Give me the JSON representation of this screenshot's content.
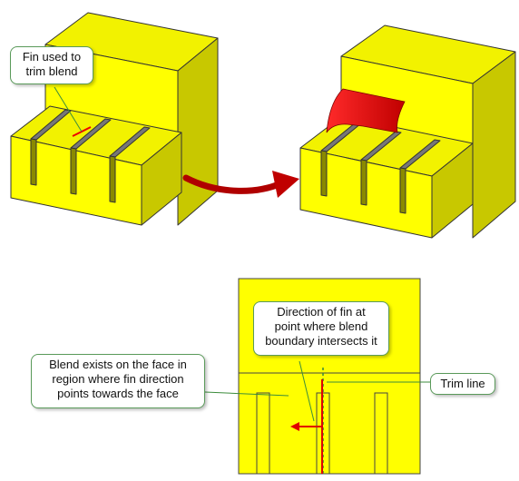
{
  "callouts": {
    "fin_trim": [
      "Fin used to",
      "trim blend"
    ],
    "fin_direction": [
      "Direction of fin at",
      "point where blend",
      "boundary intersects it"
    ],
    "blend_exists": [
      "Blend exists on the face in",
      "region where fin direction",
      "points towards the face"
    ],
    "trim_line": [
      "Trim line"
    ]
  },
  "colors": {
    "yellow_face": "#ffff00",
    "yellow_side": "#c8c800",
    "yellow_top": "#f2f200",
    "blend_red": "#ee0000",
    "arrow_red": "#cc0000",
    "callout_border": "#5a9a5a",
    "leader_line": "#3c8c3c"
  }
}
